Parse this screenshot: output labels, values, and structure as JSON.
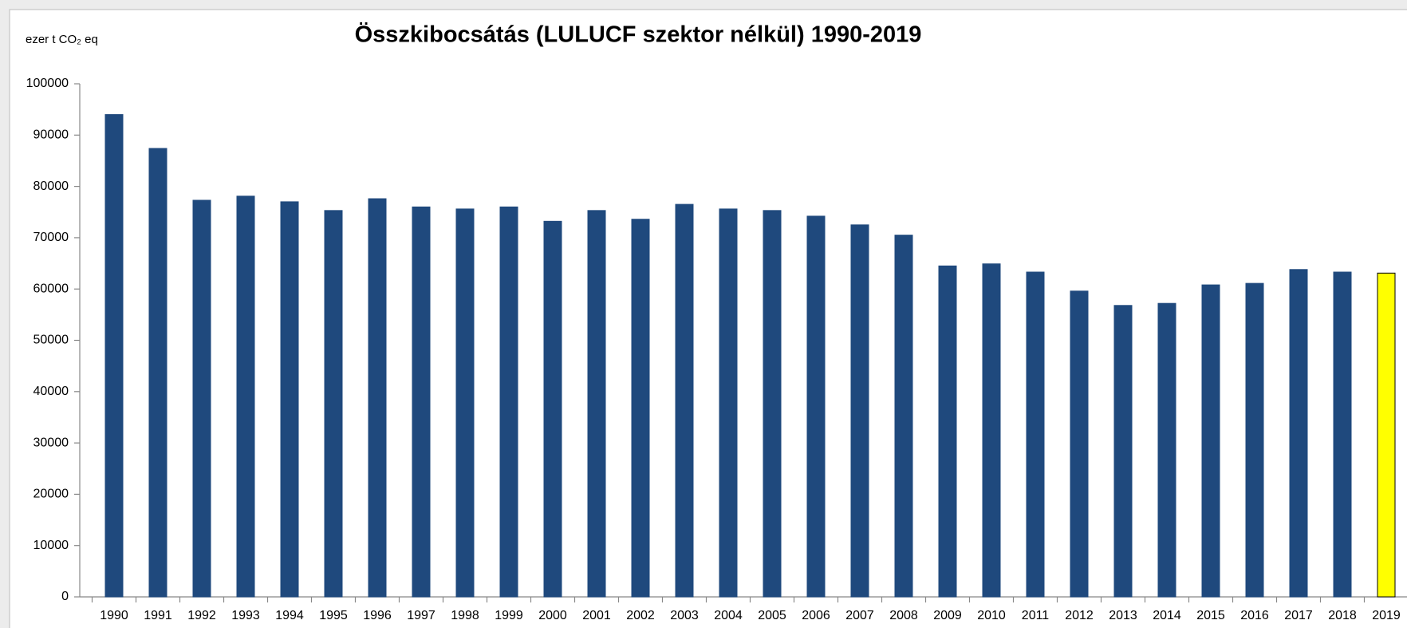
{
  "chart_data": {
    "type": "bar",
    "title": "Összkibocsátás (LULUCF szektor nélkül) 1990-2019",
    "y_label": "ezer t CO₂ eq",
    "categories": [
      "1990",
      "1991",
      "1992",
      "1993",
      "1994",
      "1995",
      "1996",
      "1997",
      "1998",
      "1999",
      "2000",
      "2001",
      "2002",
      "2003",
      "2004",
      "2005",
      "2006",
      "2007",
      "2008",
      "2009",
      "2010",
      "2011",
      "2012",
      "2013",
      "2014",
      "2015",
      "2016",
      "2017",
      "2018",
      "2019"
    ],
    "values": [
      94000,
      87400,
      77300,
      78100,
      77000,
      75300,
      77600,
      76000,
      75600,
      76000,
      73200,
      75300,
      73600,
      76500,
      75600,
      75300,
      74200,
      72500,
      70500,
      64500,
      64900,
      63300,
      59600,
      56800,
      57200,
      60800,
      61100,
      63800,
      63300,
      63100
    ],
    "colors": [
      "#1f497d",
      "#1f497d",
      "#1f497d",
      "#1f497d",
      "#1f497d",
      "#1f497d",
      "#1f497d",
      "#1f497d",
      "#1f497d",
      "#1f497d",
      "#1f497d",
      "#1f497d",
      "#1f497d",
      "#1f497d",
      "#1f497d",
      "#1f497d",
      "#1f497d",
      "#1f497d",
      "#1f497d",
      "#1f497d",
      "#1f497d",
      "#1f497d",
      "#1f497d",
      "#1f497d",
      "#1f497d",
      "#1f497d",
      "#1f497d",
      "#1f497d",
      "#1f497d",
      "#ffff00"
    ],
    "edgecolors": [
      "#1f497d",
      "#1f497d",
      "#1f497d",
      "#1f497d",
      "#1f497d",
      "#1f497d",
      "#1f497d",
      "#1f497d",
      "#1f497d",
      "#1f497d",
      "#1f497d",
      "#1f497d",
      "#1f497d",
      "#1f497d",
      "#1f497d",
      "#1f497d",
      "#1f497d",
      "#1f497d",
      "#1f497d",
      "#1f497d",
      "#1f497d",
      "#1f497d",
      "#1f497d",
      "#1f497d",
      "#1f497d",
      "#1f497d",
      "#1f497d",
      "#1f497d",
      "#1f497d",
      "#000000"
    ],
    "ylim": [
      0,
      100000
    ],
    "yticks": [
      0,
      10000,
      20000,
      30000,
      40000,
      50000,
      60000,
      70000,
      80000,
      90000,
      100000
    ],
    "grid": false
  }
}
